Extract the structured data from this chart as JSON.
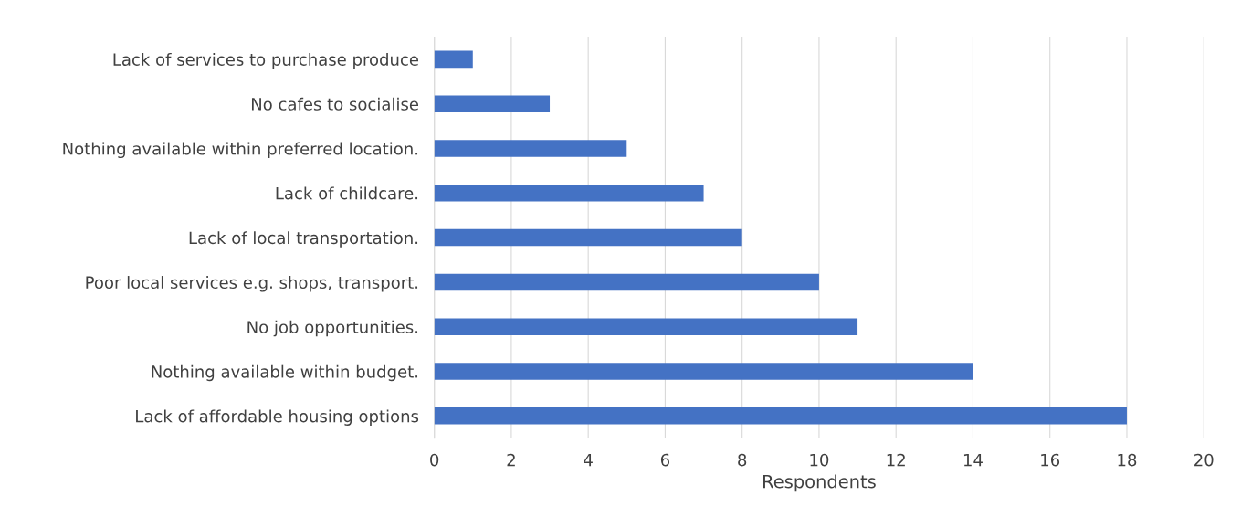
{
  "chart_data": {
    "type": "bar",
    "orientation": "horizontal",
    "xlabel": "Respondents",
    "categories": [
      "Lack of services to purchase produce",
      "No cafes to socialise",
      "Nothing available within preferred location.",
      "Lack of childcare.",
      "Lack of local transportation.",
      "Poor local services e.g. shops, transport.",
      "No job opportunities.",
      "Nothing available within budget.",
      "Lack of affordable housing options"
    ],
    "values": [
      1,
      3,
      5,
      7,
      8,
      10,
      11,
      14,
      18
    ],
    "color": "#4472c4",
    "xlim": [
      0,
      20
    ],
    "xticks": [
      0,
      2,
      4,
      6,
      8,
      10,
      12,
      14,
      16,
      18,
      20
    ],
    "grid": "x"
  }
}
